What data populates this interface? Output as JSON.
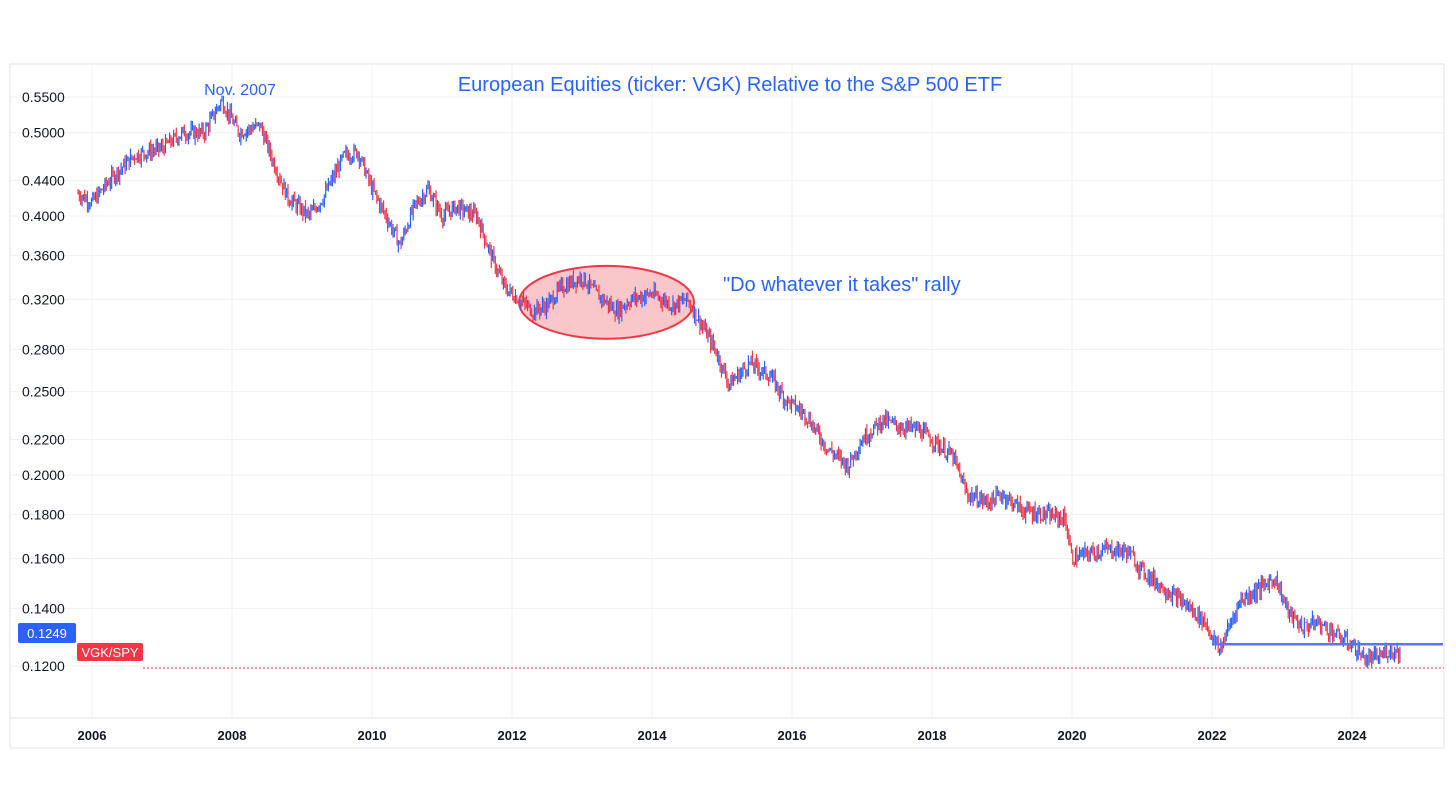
{
  "chart_data": {
    "type": "candlestick",
    "title": "European Equities (ticker: VGK) Relative to the S&P 500 ETF",
    "symbol": "VGK/SPY",
    "last_value": "0.1249",
    "y_scale": "log",
    "ylim": [
      0.108,
      0.56
    ],
    "xlim": [
      2005.8,
      2025.3
    ],
    "grid": true,
    "y_ticks": [
      "0.5500",
      "0.5000",
      "0.4400",
      "0.4000",
      "0.3600",
      "0.3200",
      "0.2800",
      "0.2500",
      "0.2200",
      "0.2000",
      "0.1800",
      "0.1600",
      "0.1400",
      "0.1200"
    ],
    "x_ticks": [
      "2006",
      "2008",
      "2010",
      "2012",
      "2014",
      "2016",
      "2018",
      "2020",
      "2022",
      "2024"
    ],
    "annotations": [
      {
        "text": "Nov. 2007",
        "x": 2007.85,
        "y": 0.545
      },
      {
        "text": "\"Do whatever it takes\" rally",
        "x_range": [
          2012.1,
          2014.6
        ],
        "y_range": [
          0.288,
          0.35
        ]
      }
    ],
    "support_line": {
      "x_range": [
        2022.0,
        2025.3
      ],
      "y": 0.1255
    },
    "series": [
      {
        "name": "VGK/SPY",
        "x": [
          2005.8,
          2006.0,
          2006.3,
          2006.6,
          2007.0,
          2007.3,
          2007.6,
          2007.85,
          2008.1,
          2008.4,
          2008.6,
          2008.8,
          2009.1,
          2009.3,
          2009.6,
          2009.8,
          2010.0,
          2010.2,
          2010.4,
          2010.6,
          2010.8,
          2011.0,
          2011.2,
          2011.5,
          2011.7,
          2011.9,
          2012.1,
          2012.3,
          2012.5,
          2012.7,
          2013.0,
          2013.2,
          2013.5,
          2013.7,
          2014.0,
          2014.3,
          2014.5,
          2014.7,
          2014.9,
          2015.1,
          2015.4,
          2015.7,
          2015.9,
          2016.2,
          2016.5,
          2016.8,
          2017.0,
          2017.3,
          2017.5,
          2017.8,
          2018.0,
          2018.3,
          2018.5,
          2018.8,
          2019.0,
          2019.3,
          2019.6,
          2019.9,
          2020.0,
          2020.2,
          2020.5,
          2020.8,
          2021.0,
          2021.3,
          2021.6,
          2021.9,
          2022.1,
          2022.4,
          2022.7,
          2022.9,
          2023.1,
          2023.3,
          2023.5,
          2023.8,
          2024.0,
          2024.2,
          2024.4,
          2024.5,
          2024.6,
          2024.7
        ],
        "values": [
          0.425,
          0.415,
          0.445,
          0.47,
          0.48,
          0.5,
          0.5,
          0.545,
          0.5,
          0.51,
          0.46,
          0.42,
          0.4,
          0.42,
          0.47,
          0.475,
          0.43,
          0.4,
          0.37,
          0.41,
          0.43,
          0.4,
          0.41,
          0.4,
          0.36,
          0.33,
          0.32,
          0.31,
          0.315,
          0.33,
          0.34,
          0.325,
          0.31,
          0.32,
          0.325,
          0.315,
          0.32,
          0.3,
          0.28,
          0.255,
          0.27,
          0.26,
          0.245,
          0.235,
          0.215,
          0.205,
          0.22,
          0.232,
          0.228,
          0.226,
          0.22,
          0.21,
          0.19,
          0.186,
          0.19,
          0.182,
          0.18,
          0.178,
          0.16,
          0.162,
          0.164,
          0.163,
          0.155,
          0.148,
          0.142,
          0.135,
          0.125,
          0.143,
          0.148,
          0.152,
          0.138,
          0.133,
          0.135,
          0.13,
          0.127,
          0.122,
          0.123,
          0.125,
          0.1249,
          0.1249
        ]
      }
    ]
  },
  "colors": {
    "up": "#2962FF",
    "down": "#F23645",
    "title": "#2962FF",
    "annotation": "#2962FF",
    "ellipse_fill": "#F9C6CA",
    "ellipse_stroke": "#F23645",
    "support_line": "#6070FF",
    "grid": "#EEF0F3",
    "price_badge": "#2962FF",
    "symbol_badge": "#F23645"
  }
}
